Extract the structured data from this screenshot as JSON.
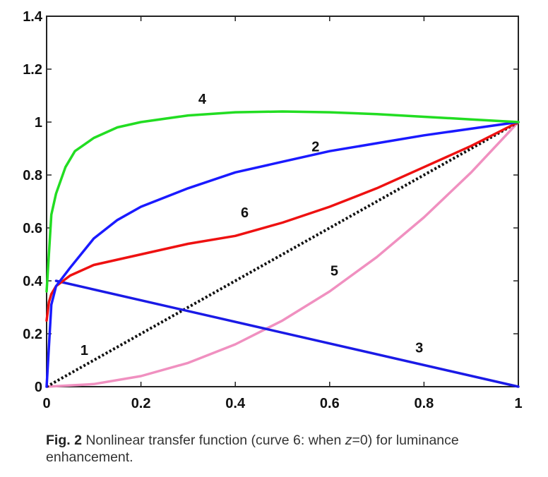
{
  "chart_data": {
    "type": "line",
    "title": "",
    "xlabel": "",
    "ylabel": "",
    "xlim": [
      0,
      1
    ],
    "ylim": [
      0,
      1.4
    ],
    "grid": false,
    "legend": "none",
    "x_ticks": [
      "0",
      "0.2",
      "0.4",
      "0.6",
      "0.8",
      "1"
    ],
    "y_ticks": [
      "0",
      "0.2",
      "0.4",
      "0.6",
      "0.8",
      "1",
      "1.2",
      "1.4"
    ],
    "series": [
      {
        "name": "1",
        "color": "#111111",
        "style": "dotted",
        "points": [
          [
            0,
            0
          ],
          [
            1,
            1
          ]
        ]
      },
      {
        "name": "2",
        "color": "#1a1aff",
        "style": "solid",
        "points": [
          [
            0,
            0
          ],
          [
            0.01,
            0.31
          ],
          [
            0.02,
            0.38
          ],
          [
            0.05,
            0.45
          ],
          [
            0.1,
            0.56
          ],
          [
            0.15,
            0.63
          ],
          [
            0.2,
            0.68
          ],
          [
            0.3,
            0.75
          ],
          [
            0.4,
            0.81
          ],
          [
            0.5,
            0.85
          ],
          [
            0.6,
            0.89
          ],
          [
            0.7,
            0.92
          ],
          [
            0.8,
            0.95
          ],
          [
            0.9,
            0.975
          ],
          [
            1,
            1
          ]
        ]
      },
      {
        "name": "3",
        "color": "#1a1ae6",
        "style": "solid",
        "points": [
          [
            0.02,
            0.4
          ],
          [
            1,
            0
          ]
        ]
      },
      {
        "name": "4",
        "color": "#22dd22",
        "style": "solid",
        "points": [
          [
            0,
            0.36
          ],
          [
            0.01,
            0.65
          ],
          [
            0.02,
            0.73
          ],
          [
            0.04,
            0.83
          ],
          [
            0.06,
            0.89
          ],
          [
            0.1,
            0.94
          ],
          [
            0.15,
            0.98
          ],
          [
            0.2,
            1.0
          ],
          [
            0.3,
            1.025
          ],
          [
            0.4,
            1.037
          ],
          [
            0.5,
            1.04
          ],
          [
            0.6,
            1.037
          ],
          [
            0.7,
            1.03
          ],
          [
            0.8,
            1.02
          ],
          [
            0.9,
            1.01
          ],
          [
            1,
            1
          ]
        ]
      },
      {
        "name": "5",
        "color": "#f090c0",
        "style": "solid",
        "points": [
          [
            0,
            0
          ],
          [
            0.1,
            0.01
          ],
          [
            0.2,
            0.04
          ],
          [
            0.3,
            0.09
          ],
          [
            0.4,
            0.16
          ],
          [
            0.5,
            0.25
          ],
          [
            0.6,
            0.36
          ],
          [
            0.7,
            0.49
          ],
          [
            0.8,
            0.64
          ],
          [
            0.9,
            0.81
          ],
          [
            1,
            1
          ]
        ]
      },
      {
        "name": "6",
        "color": "#ee1111",
        "style": "solid",
        "points": [
          [
            0,
            0.25
          ],
          [
            0.005,
            0.32
          ],
          [
            0.01,
            0.35
          ],
          [
            0.02,
            0.38
          ],
          [
            0.05,
            0.42
          ],
          [
            0.1,
            0.46
          ],
          [
            0.2,
            0.5
          ],
          [
            0.3,
            0.54
          ],
          [
            0.4,
            0.57
          ],
          [
            0.5,
            0.62
          ],
          [
            0.6,
            0.68
          ],
          [
            0.7,
            0.75
          ],
          [
            0.8,
            0.83
          ],
          [
            0.9,
            0.91
          ],
          [
            1,
            1
          ]
        ]
      }
    ],
    "curve_labels": [
      {
        "text": "1",
        "x": 0.08,
        "y": 0.12
      },
      {
        "text": "2",
        "x": 0.57,
        "y": 0.89
      },
      {
        "text": "3",
        "x": 0.79,
        "y": 0.13
      },
      {
        "text": "4",
        "x": 0.33,
        "y": 1.07
      },
      {
        "text": "5",
        "x": 0.61,
        "y": 0.42
      },
      {
        "text": "6",
        "x": 0.42,
        "y": 0.64
      }
    ]
  },
  "caption": {
    "label": "Fig. 2",
    "text_before": " Nonlinear transfer function (curve 6: when ",
    "var": "z",
    "text_after": "=0) for luminance enhancement."
  }
}
